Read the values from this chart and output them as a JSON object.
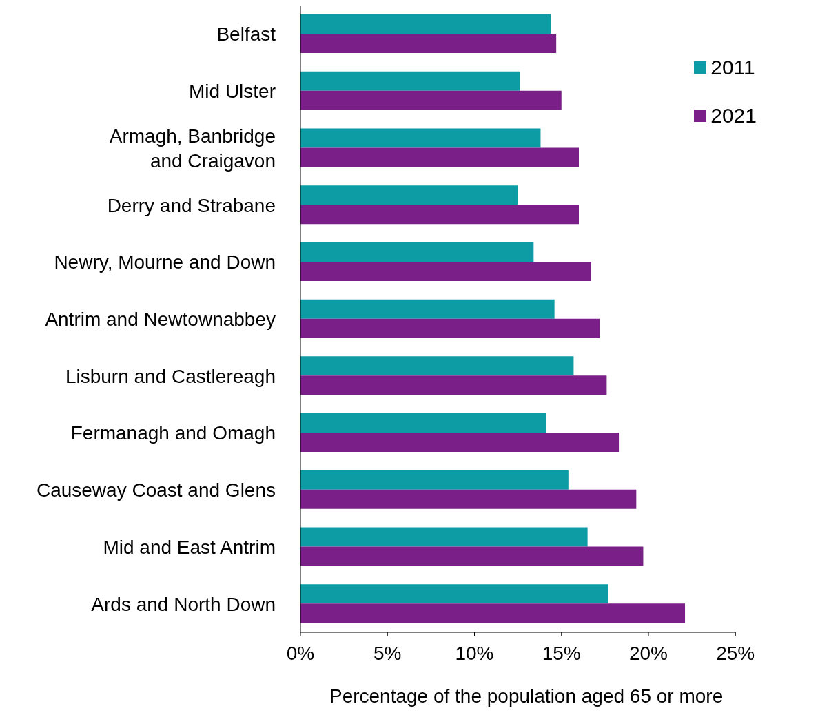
{
  "chart_data": {
    "type": "bar",
    "orientation": "horizontal",
    "xlabel": "Percentage of the population aged 65 or more",
    "categories": [
      "Belfast",
      "Mid Ulster",
      "Armagh, Banbridge and Craigavon",
      "Derry and Strabane",
      "Newry, Mourne and Down",
      "Antrim and Newtownabbey",
      "Lisburn and Castlereagh",
      "Fermanagh and Omagh",
      "Causeway Coast and Glens",
      "Mid and East Antrim",
      "Ards and North Down"
    ],
    "series": [
      {
        "name": "2011",
        "color": "#0e9ca4",
        "values": [
          14.4,
          12.6,
          13.8,
          12.5,
          13.4,
          14.6,
          15.7,
          14.1,
          15.4,
          16.5,
          17.7
        ]
      },
      {
        "name": "2021",
        "color": "#7a1f87",
        "values": [
          14.7,
          15.0,
          16.0,
          16.0,
          16.7,
          17.2,
          17.6,
          18.3,
          19.3,
          19.7,
          22.1
        ]
      }
    ],
    "xlim": [
      0,
      25
    ],
    "xticks": [
      {
        "value": 0,
        "label": "0%"
      },
      {
        "value": 5,
        "label": "5%"
      },
      {
        "value": 10,
        "label": "10%"
      },
      {
        "value": 15,
        "label": "15%"
      },
      {
        "value": 20,
        "label": "20%"
      },
      {
        "value": 25,
        "label": "25%"
      }
    ],
    "legend": "top right",
    "grid": false
  }
}
